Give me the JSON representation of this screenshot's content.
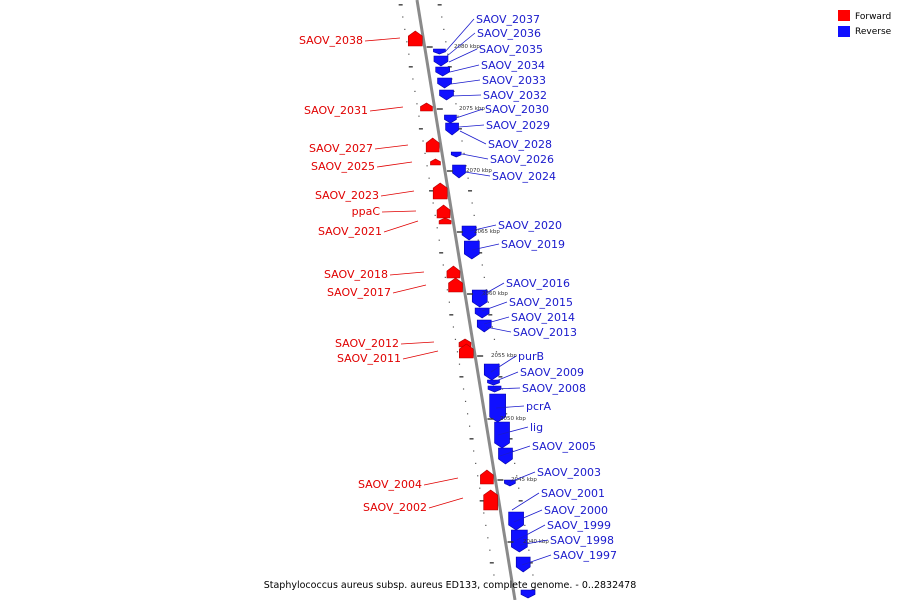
{
  "legend": {
    "forward": {
      "label": "Forward",
      "color": "#ff0000"
    },
    "reverse": {
      "label": "Reverse",
      "color": "#1010ff"
    }
  },
  "caption": "Staphylococcus aureus subsp. aureus ED133, complete genome. - 0..2832478",
  "kbp_marks": [
    "2080 kbp",
    "2075 kbp",
    "2070 kbp",
    "2065 kbp",
    "2060 kbp",
    "2055 kbp",
    "2050 kbp",
    "2045 kbp",
    "2040 kbp"
  ],
  "forward_genes": [
    "SAOV_2038",
    "SAOV_2031",
    "SAOV_2027",
    "SAOV_2025",
    "SAOV_2023",
    "ppaC",
    "SAOV_2021",
    "SAOV_2018",
    "SAOV_2017",
    "SAOV_2012",
    "SAOV_2011",
    "SAOV_2004",
    "SAOV_2002"
  ],
  "reverse_genes": [
    "SAOV_2037",
    "SAOV_2036",
    "SAOV_2035",
    "SAOV_2034",
    "SAOV_2033",
    "SAOV_2032",
    "SAOV_2030",
    "SAOV_2029",
    "SAOV_2028",
    "SAOV_2026",
    "SAOV_2024",
    "SAOV_2020",
    "SAOV_2019",
    "SAOV_2016",
    "SAOV_2015",
    "SAOV_2014",
    "SAOV_2013",
    "purB",
    "SAOV_2009",
    "SAOV_2008",
    "pcrA",
    "lig",
    "SAOV_2005",
    "SAOV_2003",
    "SAOV_2001",
    "SAOV_2000",
    "SAOV_1999",
    "SAOV_1998",
    "SAOV_1997"
  ]
}
